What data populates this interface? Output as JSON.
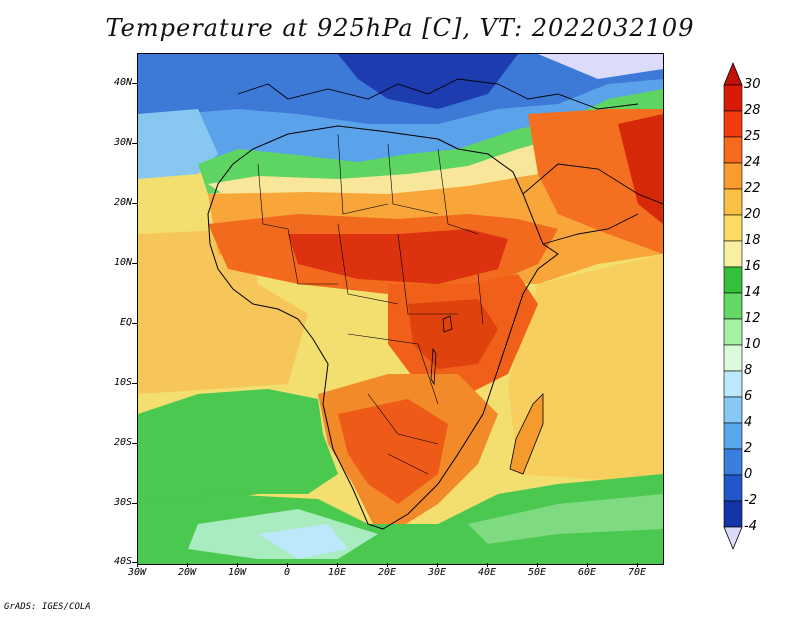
{
  "title": "Temperature at 925hPa [C], VT: 2022032109",
  "footer": "GrADS: IGES/COLA",
  "lat_labels": [
    "40N",
    "30N",
    "20N",
    "10N",
    "EQ",
    "10S",
    "20S",
    "30S",
    "40S"
  ],
  "lon_labels": [
    "30W",
    "20W",
    "10W",
    "0",
    "10E",
    "20E",
    "30E",
    "40E",
    "50E",
    "60E",
    "70E"
  ],
  "colorbar": {
    "labels": [
      "30",
      "28",
      "25",
      "24",
      "22",
      "20",
      "18",
      "16",
      "14",
      "12",
      "10",
      "8",
      "6",
      "4",
      "2",
      "0",
      "-2",
      "-4"
    ],
    "colors": [
      "#d81a06",
      "#f23c10",
      "#f66a1e",
      "#fa9c2d",
      "#fbc046",
      "#fbdb64",
      "#f7f0a2",
      "#34c03a",
      "#63d866",
      "#a5f0a2",
      "#dbfbdc",
      "#bde7fb",
      "#87c9f4",
      "#5aa6ec",
      "#3b7fde",
      "#2356c8",
      "#1434a8",
      "#0c1a7a"
    ],
    "over_color": "#c0140a",
    "under_color": "#dcdcfa"
  },
  "map_colors": {
    "ocean_south": "#f2e27a",
    "cool_north": "#4a90e6",
    "cold_core": "#1c3cb8",
    "green_band": "#5ad25e",
    "hot": "#f05a18",
    "hottest": "#d82a08",
    "warm_land": "#f8a236",
    "south_green": "#49c84e",
    "south_light": "#a8ecc0"
  }
}
